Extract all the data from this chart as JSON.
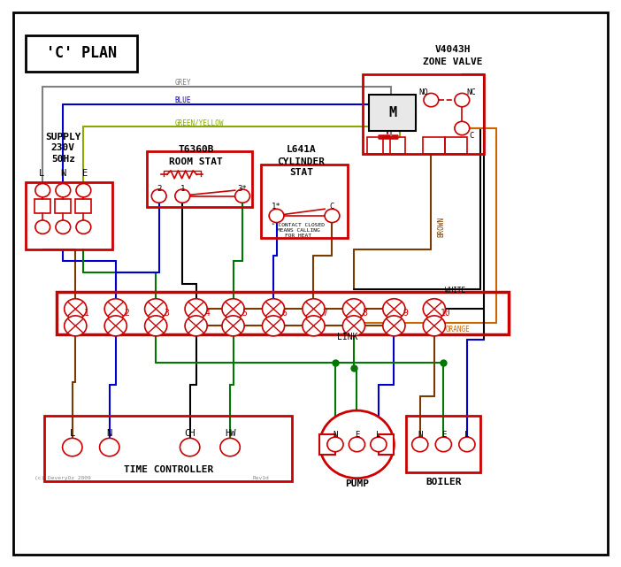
{
  "title": "'C' PLAN",
  "bg_color": "#ffffff",
  "red": "#cc0000",
  "black": "#000000",
  "grey": "#808080",
  "blue": "#0000cc",
  "green": "#007700",
  "brown": "#7a3b00",
  "orange": "#cc6600",
  "green_yellow": "#88aa00",
  "terminal_strip_numbers": [
    "1",
    "2",
    "3",
    "4",
    "5",
    "6",
    "7",
    "8",
    "9",
    "10"
  ],
  "time_controller_labels": [
    "L",
    "N",
    "CH",
    "HW"
  ],
  "pump_labels": [
    "N",
    "E",
    "L"
  ],
  "boiler_labels": [
    "N",
    "E",
    "L"
  ]
}
